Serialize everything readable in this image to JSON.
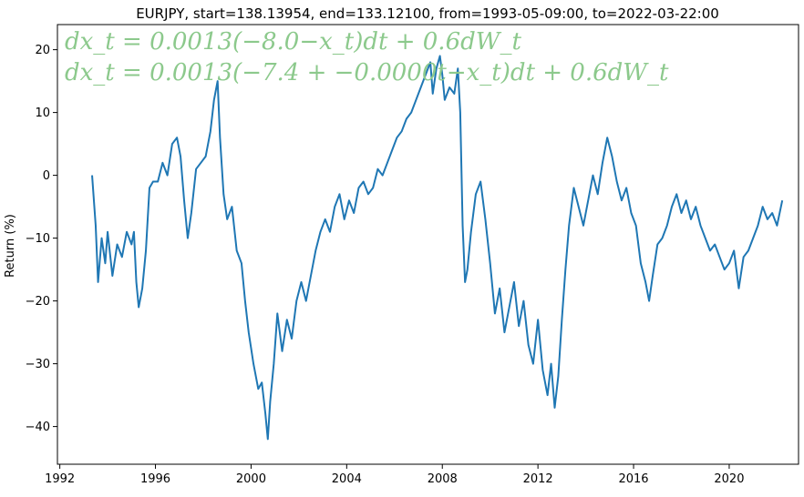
{
  "chart_data": {
    "type": "line",
    "title": "EURJPY, start=138.13954, end=133.12100, from=1993-05-09:00, to=2022-03-22:00",
    "xlabel": "",
    "ylabel": "Return (%)",
    "xlim": [
      1991.9,
      2022.9
    ],
    "ylim": [
      -46,
      24
    ],
    "grid": false,
    "x_ticks": [
      1992,
      1996,
      2000,
      2004,
      2008,
      2012,
      2016,
      2020
    ],
    "x_tick_labels": [
      "1992",
      "1996",
      "2000",
      "2004",
      "2008",
      "2012",
      "2016",
      "2020"
    ],
    "y_ticks": [
      -40,
      -30,
      -20,
      -10,
      0,
      10,
      20
    ],
    "y_tick_labels": [
      "−40",
      "−30",
      "−20",
      "−10",
      "0",
      "10",
      "20"
    ],
    "annotations": [
      {
        "text": "dx_t = 0.0013(−8.0−x_t)dt + 0.6dW_t",
        "color": "#8cc98c"
      },
      {
        "text": "dx_t = 0.0013(−7.4 + −0.0000t−x_t)dt + 0.6dW_t",
        "color": "#8cc98c"
      }
    ],
    "series": [
      {
        "color": "#1f77b4",
        "x": [
          1993.35,
          1993.5,
          1993.6,
          1993.75,
          1993.9,
          1994.0,
          1994.2,
          1994.4,
          1994.6,
          1994.8,
          1995.0,
          1995.1,
          1995.2,
          1995.3,
          1995.45,
          1995.6,
          1995.75,
          1995.9,
          1996.1,
          1996.3,
          1996.5,
          1996.7,
          1996.9,
          1997.05,
          1997.2,
          1997.35,
          1997.5,
          1997.7,
          1997.9,
          1998.1,
          1998.3,
          1998.45,
          1998.6,
          1998.7,
          1998.85,
          1999.0,
          1999.2,
          1999.4,
          1999.6,
          1999.75,
          1999.9,
          2000.1,
          2000.3,
          2000.45,
          2000.6,
          2000.7,
          2000.8,
          2000.95,
          2001.1,
          2001.3,
          2001.5,
          2001.7,
          2001.9,
          2002.1,
          2002.3,
          2002.5,
          2002.7,
          2002.9,
          2003.1,
          2003.3,
          2003.5,
          2003.7,
          2003.9,
          2004.1,
          2004.3,
          2004.5,
          2004.7,
          2004.9,
          2005.1,
          2005.3,
          2005.5,
          2005.7,
          2005.9,
          2006.1,
          2006.3,
          2006.5,
          2006.7,
          2006.9,
          2007.1,
          2007.3,
          2007.5,
          2007.6,
          2007.75,
          2007.9,
          2008.0,
          2008.1,
          2008.3,
          2008.5,
          2008.65,
          2008.75,
          2008.85,
          2008.95,
          2009.05,
          2009.2,
          2009.4,
          2009.6,
          2009.8,
          2010.0,
          2010.2,
          2010.4,
          2010.6,
          2010.8,
          2011.0,
          2011.2,
          2011.4,
          2011.6,
          2011.8,
          2012.0,
          2012.2,
          2012.4,
          2012.55,
          2012.7,
          2012.85,
          2013.0,
          2013.15,
          2013.3,
          2013.5,
          2013.7,
          2013.9,
          2014.1,
          2014.3,
          2014.5,
          2014.7,
          2014.9,
          2015.1,
          2015.3,
          2015.5,
          2015.7,
          2015.9,
          2016.1,
          2016.3,
          2016.5,
          2016.65,
          2016.8,
          2017.0,
          2017.2,
          2017.4,
          2017.6,
          2017.8,
          2018.0,
          2018.2,
          2018.4,
          2018.6,
          2018.8,
          2019.0,
          2019.2,
          2019.4,
          2019.6,
          2019.8,
          2020.0,
          2020.2,
          2020.4,
          2020.6,
          2020.8,
          2021.0,
          2021.2,
          2021.4,
          2021.6,
          2021.8,
          2022.0,
          2022.22
        ],
        "y": [
          0.0,
          -8.0,
          -17.0,
          -10.0,
          -14.0,
          -9.0,
          -16.0,
          -11.0,
          -13.0,
          -9.0,
          -11.0,
          -9.0,
          -17.0,
          -21.0,
          -18.0,
          -12.0,
          -2.0,
          -1.0,
          -1.0,
          2.0,
          0.0,
          5.0,
          6.0,
          3.0,
          -4.0,
          -10.0,
          -6.0,
          1.0,
          2.0,
          3.0,
          7.0,
          12.0,
          15.0,
          6.0,
          -3.0,
          -7.0,
          -5.0,
          -12.0,
          -14.0,
          -20.0,
          -25.0,
          -30.0,
          -34.0,
          -33.0,
          -38.0,
          -42.0,
          -36.0,
          -30.0,
          -22.0,
          -28.0,
          -23.0,
          -26.0,
          -20.0,
          -17.0,
          -20.0,
          -16.0,
          -12.0,
          -9.0,
          -7.0,
          -9.0,
          -5.0,
          -3.0,
          -7.0,
          -4.0,
          -6.0,
          -2.0,
          -1.0,
          -3.0,
          -2.0,
          1.0,
          0.0,
          2.0,
          4.0,
          6.0,
          7.0,
          9.0,
          10.0,
          12.0,
          14.0,
          16.0,
          18.0,
          13.0,
          17.0,
          19.0,
          16.0,
          12.0,
          14.0,
          13.0,
          17.0,
          10.0,
          -8.0,
          -17.0,
          -15.0,
          -9.0,
          -3.0,
          -1.0,
          -7.0,
          -14.0,
          -22.0,
          -18.0,
          -25.0,
          -21.0,
          -17.0,
          -24.0,
          -20.0,
          -27.0,
          -30.0,
          -23.0,
          -31.0,
          -35.0,
          -30.0,
          -37.0,
          -32.0,
          -23.0,
          -15.0,
          -8.0,
          -2.0,
          -5.0,
          -8.0,
          -4.0,
          0.0,
          -3.0,
          2.0,
          6.0,
          3.0,
          -1.0,
          -4.0,
          -2.0,
          -6.0,
          -8.0,
          -14.0,
          -17.0,
          -20.0,
          -16.0,
          -11.0,
          -10.0,
          -8.0,
          -5.0,
          -3.0,
          -6.0,
          -4.0,
          -7.0,
          -5.0,
          -8.0,
          -10.0,
          -12.0,
          -11.0,
          -13.0,
          -15.0,
          -14.0,
          -12.0,
          -18.0,
          -13.0,
          -12.0,
          -10.0,
          -8.0,
          -5.0,
          -7.0,
          -6.0,
          -8.0,
          -4.0
        ]
      }
    ]
  }
}
